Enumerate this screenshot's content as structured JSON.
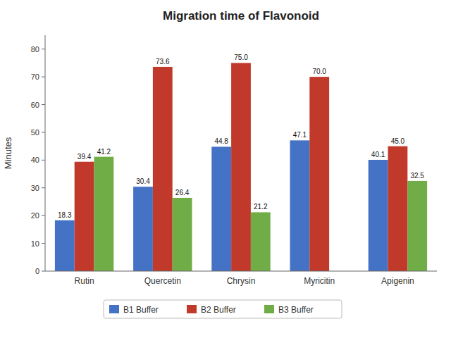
{
  "chart_data": {
    "type": "bar",
    "title": "Migration time of Flavonoid",
    "ylabel": "Minutes",
    "categories": [
      "Rutin",
      "Quercetin",
      "Chrysin",
      "Myricitin",
      "Apigenin"
    ],
    "series": [
      {
        "name": "B1 Buffer",
        "color": "#4472C4",
        "values": [
          18.3,
          30.4,
          44.8,
          47.1,
          40.1
        ],
        "value_labels": [
          "18.3",
          "30.4",
          "44.8",
          "47.1",
          "40.1"
        ]
      },
      {
        "name": "B2 Buffer",
        "color": "#C0392B",
        "values": [
          39.4,
          73.6,
          75.0,
          70.0,
          45.0
        ],
        "value_labels": [
          "39.4",
          "73.6",
          "75.0",
          "70.0",
          "45.0"
        ]
      },
      {
        "name": "B3 Buffer",
        "color": "#70AD47",
        "values": [
          41.2,
          26.4,
          21.2,
          0.0,
          32.5
        ],
        "value_labels": [
          "41.2",
          "26.4",
          "21.2",
          null,
          "32.5"
        ]
      }
    ],
    "ylim": [
      0,
      85
    ],
    "yticks": [
      0,
      10,
      20,
      30,
      40,
      50,
      60,
      70,
      80
    ],
    "grid": false,
    "legend": "bottom",
    "data_labels": true
  }
}
